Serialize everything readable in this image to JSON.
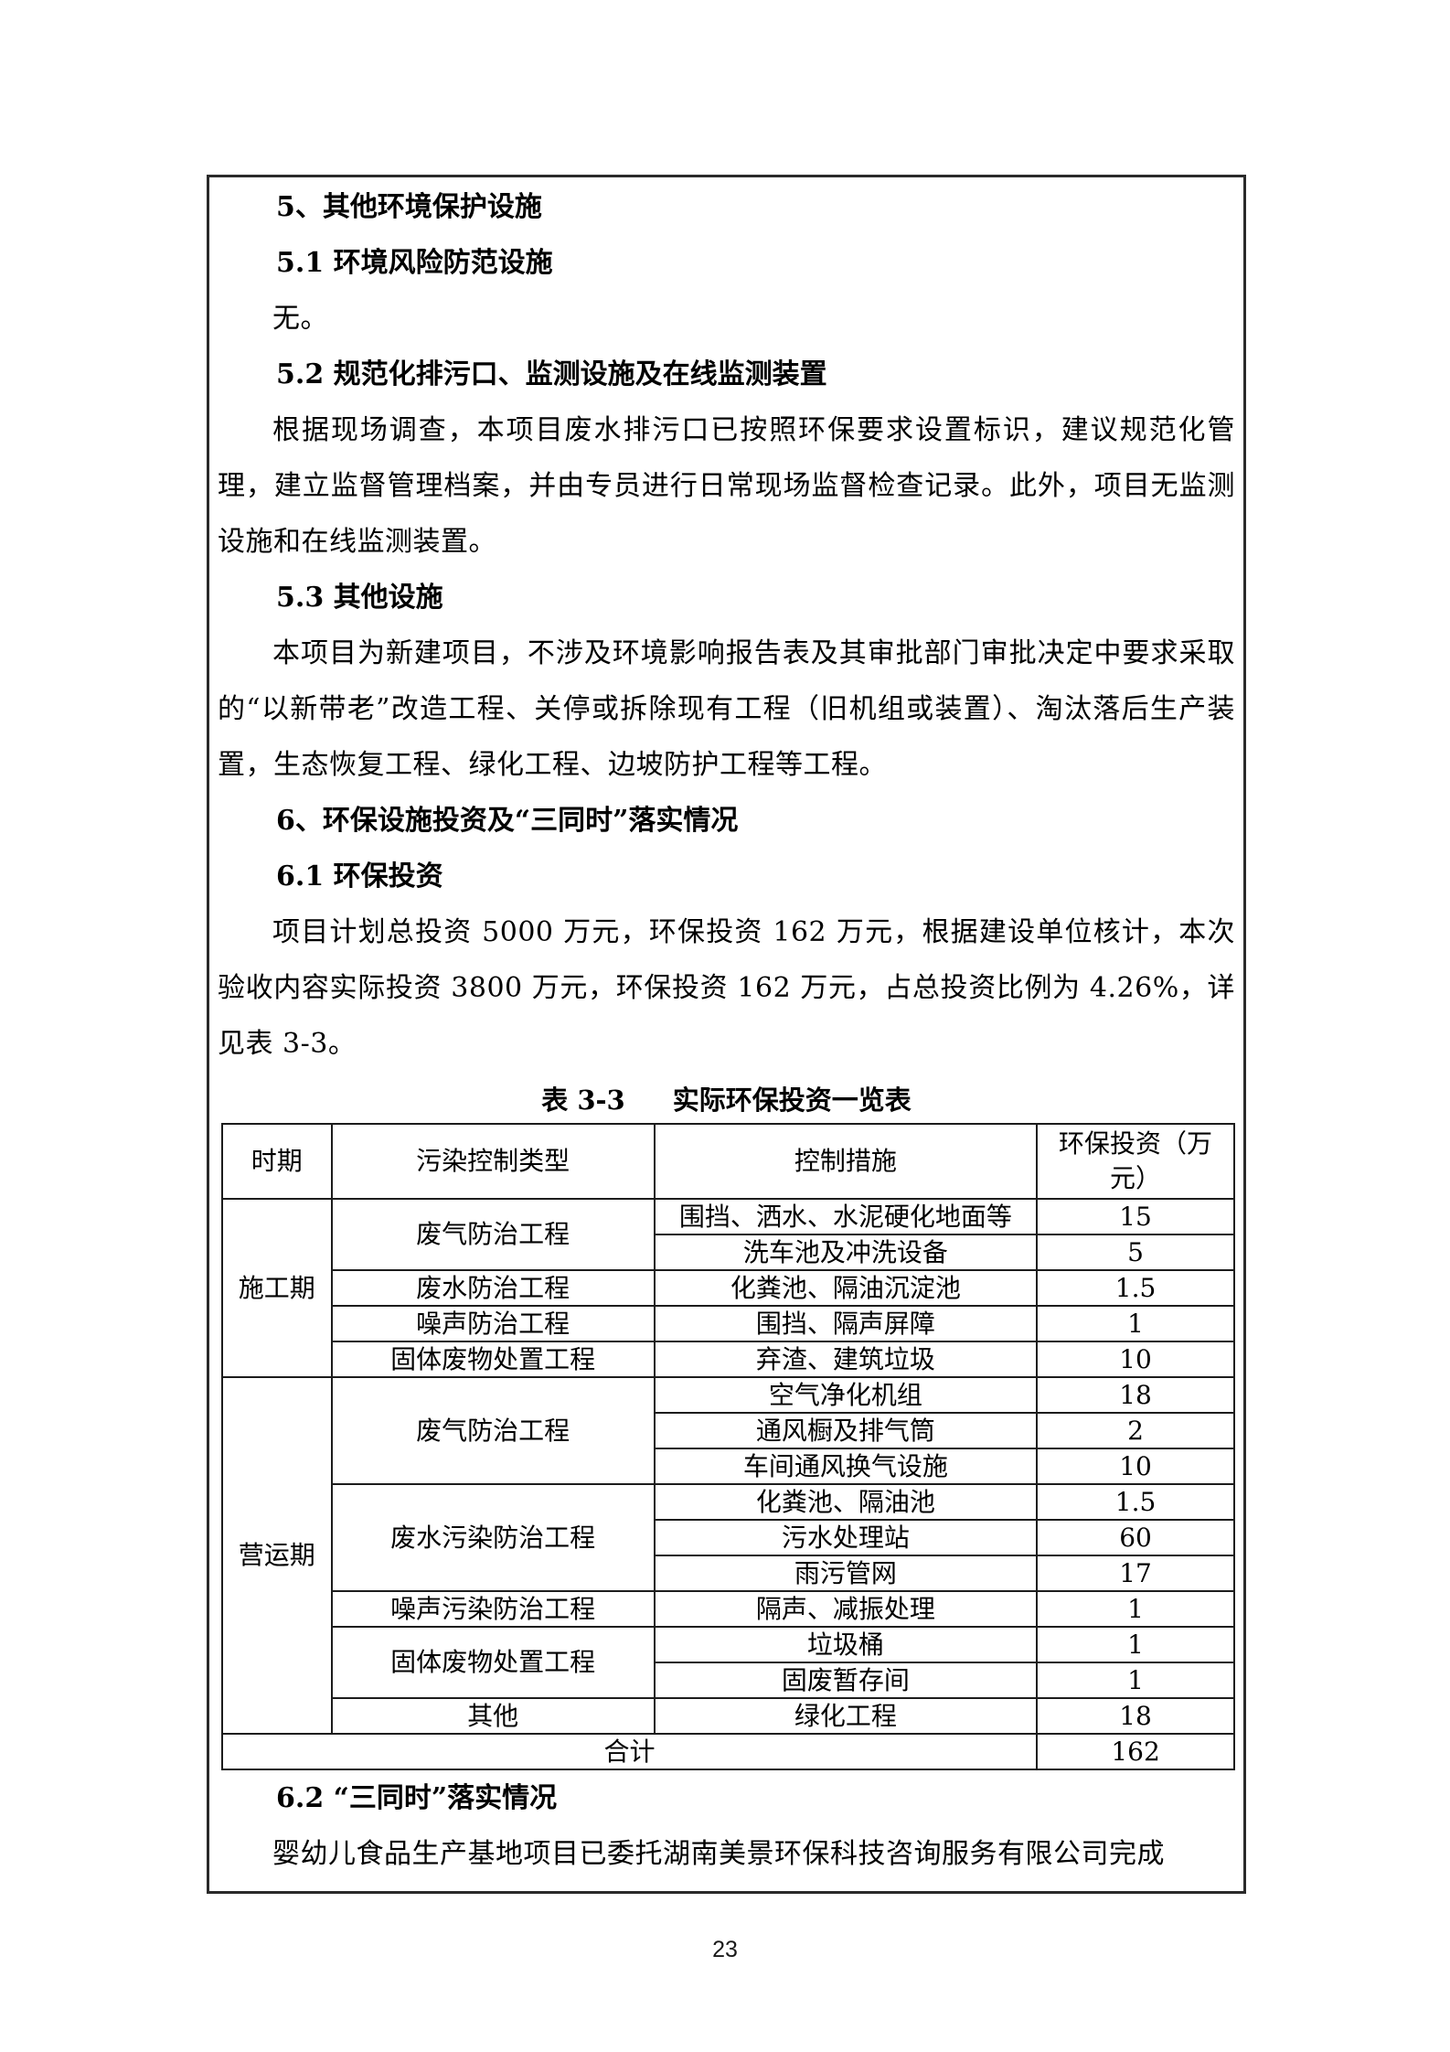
{
  "doc": {
    "sections": {
      "s5": {
        "title": "5、其他环境保护设施"
      },
      "s5_1": {
        "title": "5.1 环境风险防范设施",
        "body": "无。"
      },
      "s5_2": {
        "title": "5.2 规范化排污口、监测设施及在线监测装置",
        "body": "根据现场调查，本项目废水排污口已按照环保要求设置标识，建议规范化管理，建立监督管理档案，并由专员进行日常现场监督检查记录。此外，项目无监测设施和在线监测装置。"
      },
      "s5_3": {
        "title": "5.3 其他设施",
        "body": "本项目为新建项目，不涉及环境影响报告表及其审批部门审批决定中要求采取的“以新带老”改造工程、关停或拆除现有工程（旧机组或装置）、淘汰落后生产装置，生态恢复工程、绿化工程、边坡防护工程等工程。"
      },
      "s6": {
        "title": "6、环保设施投资及“三同时”落实情况"
      },
      "s6_1": {
        "title": "6.1 环保投资",
        "body": "项目计划总投资 5000 万元，环保投资 162 万元，根据建设单位核计，本次验收内容实际投资 3800 万元，环保投资 162 万元，占总投资比例为 4.26%，详见表 3-3。"
      },
      "s6_2": {
        "title": "6.2 “三同时”落实情况",
        "body": "婴幼儿食品生产基地项目已委托湖南美景环保科技咨询服务有限公司完成"
      }
    },
    "table": {
      "caption_label": "表 3-3",
      "caption_text": "实际环保投资一览表",
      "columns": [
        "时期",
        "污染控制类型",
        "控制措施",
        "环保投资（万元）"
      ],
      "groups": [
        {
          "period": "施工期",
          "types": [
            {
              "type": "废气防治工程",
              "measures": [
                {
                  "measure": "围挡、洒水、水泥硬化地面等",
                  "investment": "15"
                },
                {
                  "measure": "洗车池及冲洗设备",
                  "investment": "5"
                }
              ]
            },
            {
              "type": "废水防治工程",
              "measures": [
                {
                  "measure": "化粪池、隔油沉淀池",
                  "investment": "1.5"
                }
              ]
            },
            {
              "type": "噪声防治工程",
              "measures": [
                {
                  "measure": "围挡、隔声屏障",
                  "investment": "1"
                }
              ]
            },
            {
              "type": "固体废物处置工程",
              "measures": [
                {
                  "measure": "弃渣、建筑垃圾",
                  "investment": "10"
                }
              ]
            }
          ]
        },
        {
          "period": "营运期",
          "types": [
            {
              "type": "废气防治工程",
              "measures": [
                {
                  "measure": "空气净化机组",
                  "investment": "18"
                },
                {
                  "measure": "通风橱及排气筒",
                  "investment": "2"
                },
                {
                  "measure": "车间通风换气设施",
                  "investment": "10"
                }
              ]
            },
            {
              "type": "废水污染防治工程",
              "measures": [
                {
                  "measure": "化粪池、隔油池",
                  "investment": "1.5"
                },
                {
                  "measure": "污水处理站",
                  "investment": "60"
                },
                {
                  "measure": "雨污管网",
                  "investment": "17"
                }
              ]
            },
            {
              "type": "噪声污染防治工程",
              "measures": [
                {
                  "measure": "隔声、减振处理",
                  "investment": "1"
                }
              ]
            },
            {
              "type": "固体废物处置工程",
              "measures": [
                {
                  "measure": "垃圾桶",
                  "investment": "1"
                },
                {
                  "measure": "固废暂存间",
                  "investment": "1"
                }
              ]
            },
            {
              "type": "其他",
              "measures": [
                {
                  "measure": "绿化工程",
                  "investment": "18"
                }
              ]
            }
          ]
        }
      ],
      "total_label": "合计",
      "total_value": "162"
    },
    "footer": {
      "page_number": "23"
    }
  }
}
